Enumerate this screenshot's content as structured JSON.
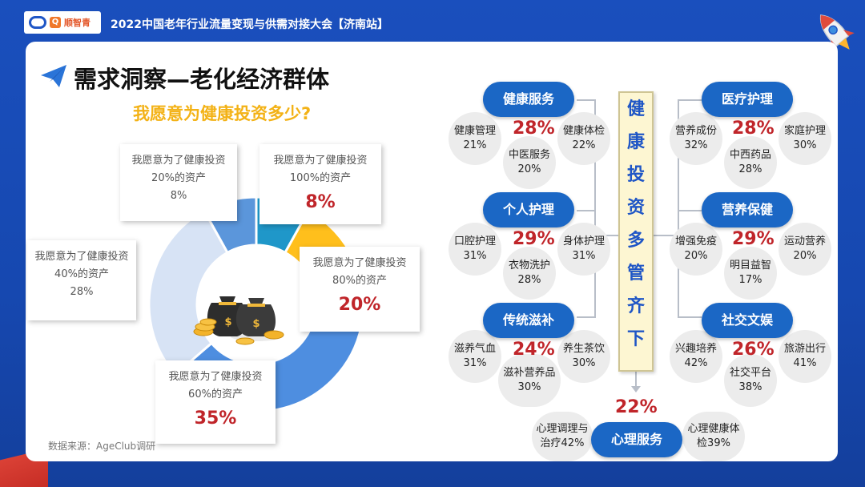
{
  "header": {
    "logo_text": "顺智青",
    "title": "2022中国老年行业流量变现与供需对接大会【济南站】"
  },
  "page": {
    "title": "需求洞察—老化经济群体",
    "subtitle": "我愿意为健康投资多少?",
    "source": "数据来源：AgeClub调研"
  },
  "chart_data": [
    {
      "type": "pie",
      "variant": "donut",
      "title": "我愿意为健康投资多少?",
      "slices": [
        {
          "label": "我愿意为了健康投资 100%的资产",
          "line1": "我愿意为了健康投资",
          "line2": "100%的资产",
          "value": 8,
          "value_label": "8%",
          "color": "#1f97c9"
        },
        {
          "label": "我愿意为了健康投资 80%的资产",
          "line1": "我愿意为了健康投资",
          "line2": "80%的资产",
          "value": 20,
          "value_label": "20%",
          "color": "#ffbf1c"
        },
        {
          "label": "我愿意为了健康投资 60%的资产",
          "line1": "我愿意为了健康投资",
          "line2": "60%的资产",
          "value": 35,
          "value_label": "35%",
          "color": "#4e8ee0"
        },
        {
          "label": "我愿意为了健康投资 40%的资产",
          "line1": "我愿意为了健康投资",
          "line2": "40%的资产",
          "value": 28,
          "value_label": "28%",
          "color": "#d7e3f5"
        },
        {
          "label": "我愿意为了健康投资 20%的资产",
          "line1": "我愿意为了健康投资",
          "line2": "20%的资产",
          "value": 8,
          "value_label": "8%",
          "color": "#5b96db"
        }
      ]
    },
    {
      "type": "table",
      "title": "健康投资多管齐下",
      "center_chars": [
        "健",
        "康",
        "投",
        "资",
        "多",
        "管",
        "齐",
        "下"
      ],
      "groups": [
        {
          "name": "健康服务",
          "pct": "28%",
          "items": [
            {
              "name": "健康管理",
              "pct": "21%"
            },
            {
              "name": "中医服务",
              "pct": "20%"
            },
            {
              "name": "健康体检",
              "pct": "22%"
            }
          ]
        },
        {
          "name": "个人护理",
          "pct": "29%",
          "items": [
            {
              "name": "口腔护理",
              "pct": "31%"
            },
            {
              "name": "衣物洗护",
              "pct": "28%"
            },
            {
              "name": "身体护理",
              "pct": "31%"
            }
          ]
        },
        {
          "name": "传统滋补",
          "pct": "24%",
          "items": [
            {
              "name": "滋养气血",
              "pct": "31%"
            },
            {
              "name": "滋补营养品",
              "pct": "30%"
            },
            {
              "name": "养生茶饮",
              "pct": "30%"
            }
          ]
        },
        {
          "name": "医疗护理",
          "pct": "28%",
          "items": [
            {
              "name": "营养成份",
              "pct": "32%"
            },
            {
              "name": "中西药品",
              "pct": "28%"
            },
            {
              "name": "家庭护理",
              "pct": "30%"
            }
          ]
        },
        {
          "name": "营养保健",
          "pct": "29%",
          "items": [
            {
              "name": "增强免疫",
              "pct": "20%"
            },
            {
              "name": "明目益智",
              "pct": "17%"
            },
            {
              "name": "运动营养",
              "pct": "20%"
            }
          ]
        },
        {
          "name": "社交文娱",
          "pct": "26%",
          "items": [
            {
              "name": "兴趣培养",
              "pct": "42%"
            },
            {
              "name": "社交平台",
              "pct": "38%"
            },
            {
              "name": "旅游出行",
              "pct": "41%"
            }
          ]
        },
        {
          "name": "心理服务",
          "pct": "22%",
          "items": [
            {
              "line1": "心理调理与",
              "line2": "治疗42%"
            },
            {
              "line1": "心理健康体",
              "line2": "检39%"
            }
          ]
        }
      ]
    }
  ]
}
